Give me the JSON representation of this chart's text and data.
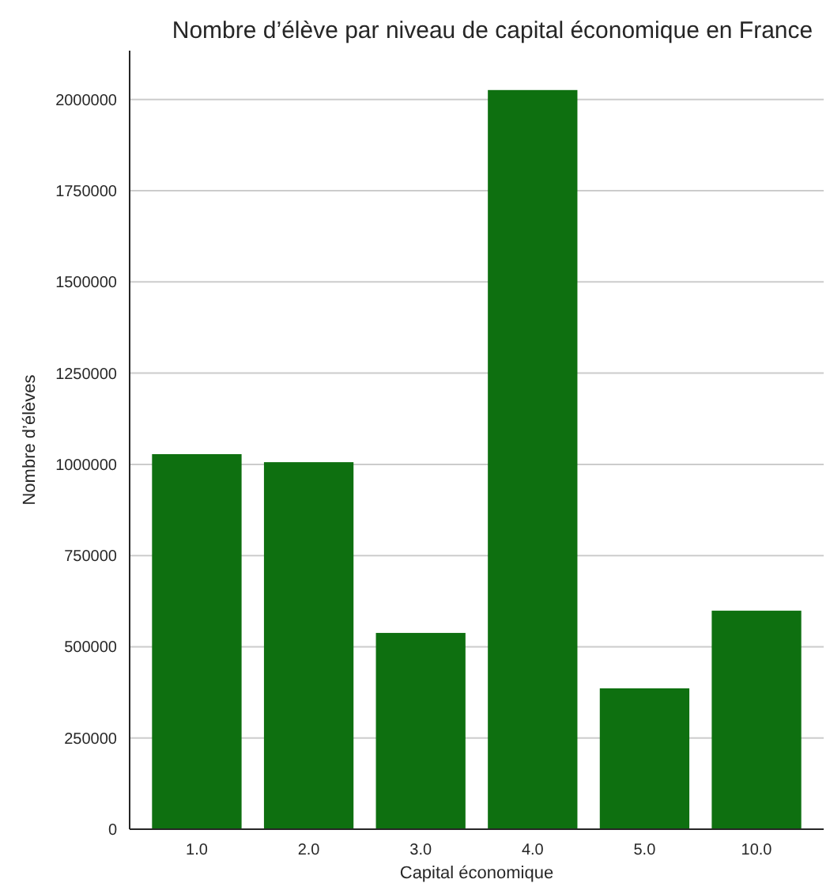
{
  "chart_data": {
    "type": "bar",
    "title": "Nombre d’élève par niveau de capital économique en France",
    "xlabel": "Capital économique",
    "ylabel": "Nombre d’élèves",
    "categories": [
      "1.0",
      "2.0",
      "3.0",
      "4.0",
      "5.0",
      "10.0"
    ],
    "values": [
      1028000,
      1006000,
      538000,
      2026000,
      386000,
      599000
    ],
    "color": "#0e7010",
    "ylim": [
      0,
      2134000
    ],
    "yticks": [
      0,
      250000,
      500000,
      750000,
      1000000,
      1250000,
      1500000,
      1750000,
      2000000
    ],
    "grid": "y"
  }
}
